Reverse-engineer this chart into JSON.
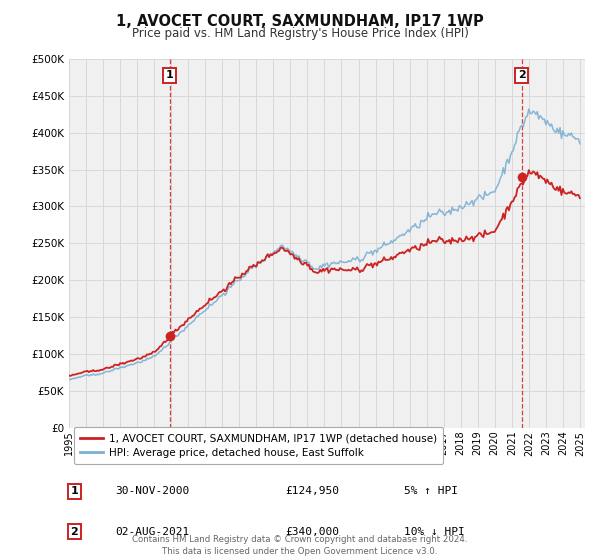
{
  "title": "1, AVOCET COURT, SAXMUNDHAM, IP17 1WP",
  "subtitle": "Price paid vs. HM Land Registry's House Price Index (HPI)",
  "hpi_color": "#7bafd4",
  "price_color": "#cc2222",
  "background_color": "#ffffff",
  "plot_bg_color": "#f0f0f0",
  "grid_color": "#d8d8d8",
  "ylim": [
    0,
    500000
  ],
  "yticks": [
    0,
    50000,
    100000,
    150000,
    200000,
    250000,
    300000,
    350000,
    400000,
    450000,
    500000
  ],
  "legend_label_price": "1, AVOCET COURT, SAXMUNDHAM, IP17 1WP (detached house)",
  "legend_label_hpi": "HPI: Average price, detached house, East Suffolk",
  "ann1_date": "30-NOV-2000",
  "ann1_price": "£124,950",
  "ann1_pct": "5% ↑ HPI",
  "ann2_date": "02-AUG-2021",
  "ann2_price": "£340,000",
  "ann2_pct": "10% ↓ HPI",
  "footer": "Contains HM Land Registry data © Crown copyright and database right 2024.\nThis data is licensed under the Open Government Licence v3.0.",
  "t1": 2000.917,
  "t2": 2021.583,
  "price1": 124950,
  "price2": 340000,
  "xlim_start": 1995,
  "xlim_end": 2025.3
}
